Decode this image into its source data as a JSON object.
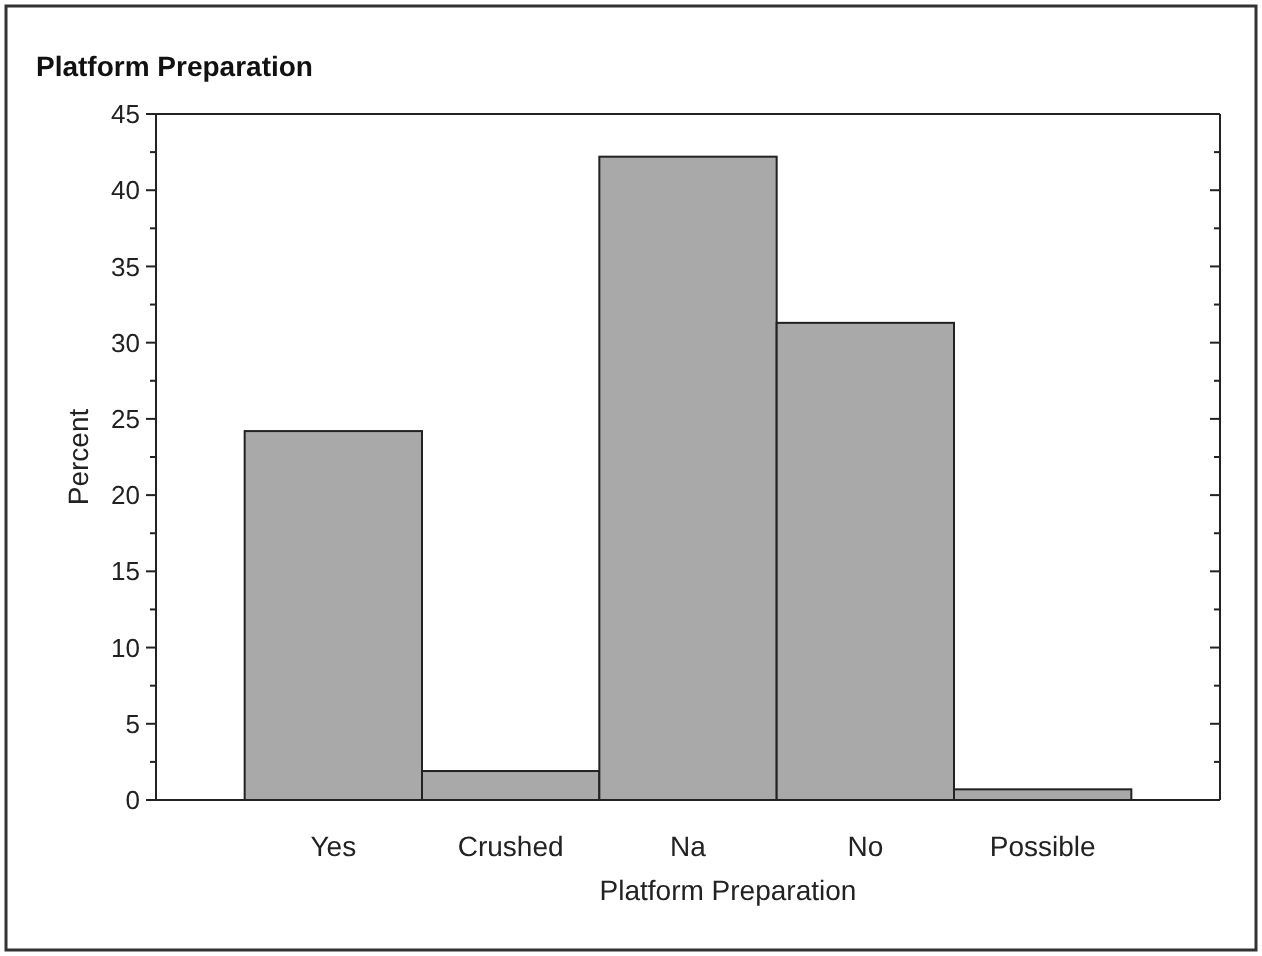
{
  "chart_data": {
    "type": "bar",
    "title": "Platform Preparation",
    "xlabel": "Platform Preparation",
    "ylabel": "Percent",
    "categories": [
      "Yes",
      "Crushed",
      "Na",
      "No",
      "Possible"
    ],
    "values": [
      24.2,
      1.9,
      42.2,
      31.3,
      0.7
    ],
    "color": "#a9a9a9",
    "ylim": [
      0,
      45
    ],
    "yticks": [
      0,
      5,
      10,
      15,
      20,
      25,
      30,
      35,
      40,
      45
    ],
    "grid": false
  }
}
